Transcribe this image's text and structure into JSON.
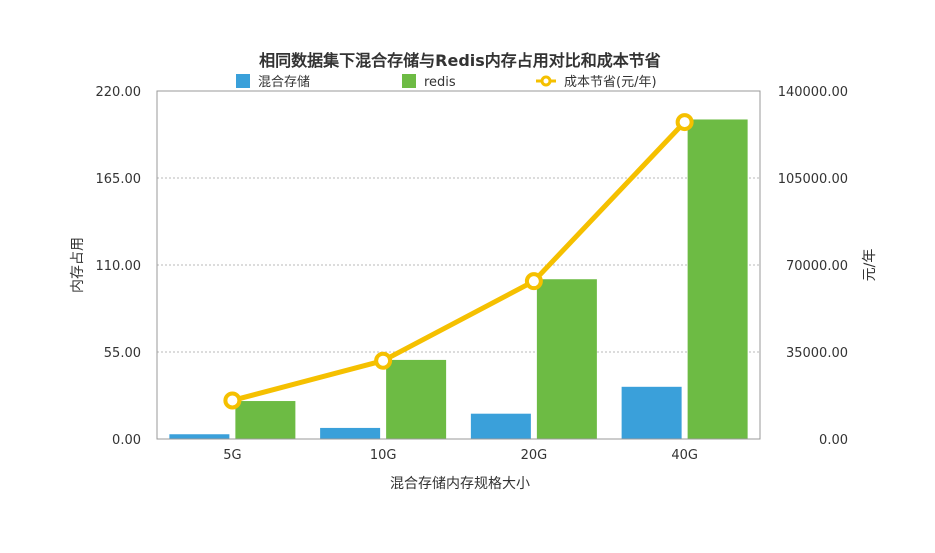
{
  "chart_data": {
    "type": "bar",
    "title": "相同数据集下混合存储与Redis内存占用对比和成本节省",
    "xlabel": "混合存储内存规格大小",
    "ylabel": "内存占用",
    "y2label": "元/年",
    "categories": [
      "5G",
      "10G",
      "20G",
      "40G"
    ],
    "ylim": [
      0,
      220
    ],
    "y2lim": [
      0,
      140000
    ],
    "yticks": [
      "0.00",
      "55.00",
      "110.00",
      "165.00",
      "220.00"
    ],
    "y2ticks": [
      "0.00",
      "35000.00",
      "70000.00",
      "105000.00",
      "140000.00"
    ],
    "grid": true,
    "legend_position": "top",
    "series": [
      {
        "name": "混合存储",
        "type": "bar",
        "axis": "left",
        "color": "#3aa0da",
        "values": [
          3,
          7,
          16,
          33
        ]
      },
      {
        "name": "redis",
        "type": "bar",
        "axis": "left",
        "color": "#6dbb44",
        "values": [
          24,
          50,
          101,
          202
        ]
      },
      {
        "name": "成本节省(元/年)",
        "type": "line",
        "axis": "right",
        "color": "#f5c000",
        "values": [
          15500,
          31500,
          63500,
          127500
        ]
      }
    ]
  }
}
